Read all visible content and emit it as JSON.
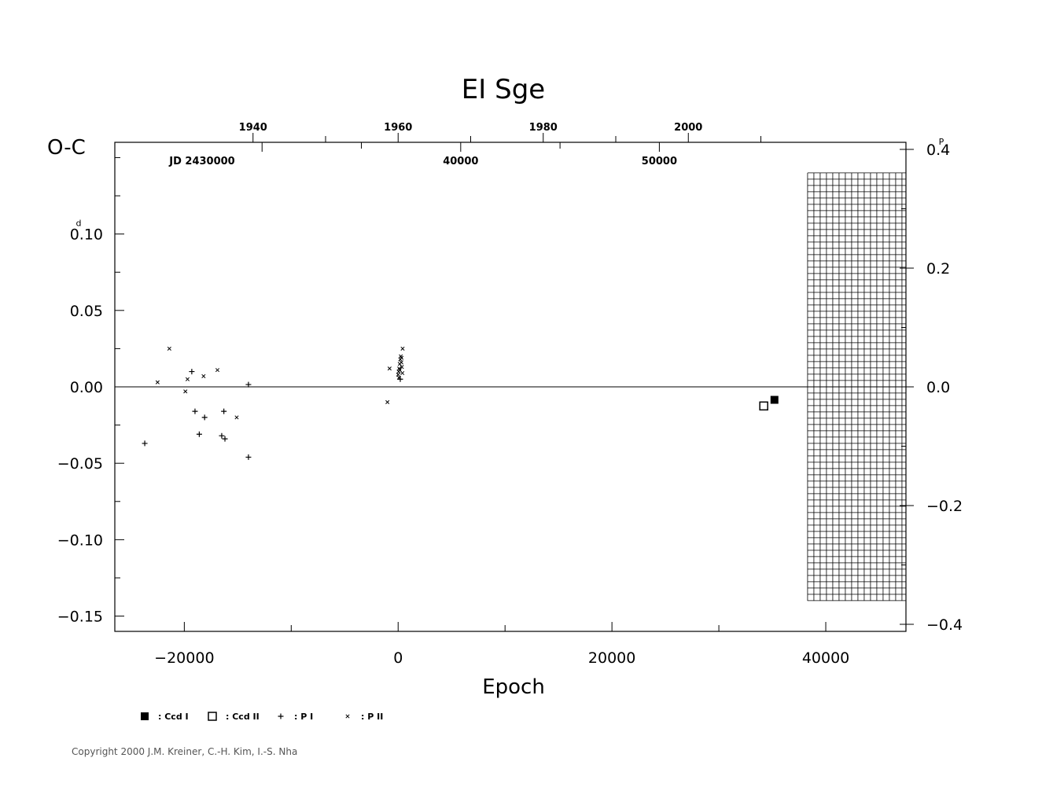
{
  "chart_data": {
    "type": "scatter",
    "title": "EI  Sge",
    "xlabel": "Epoch",
    "ylabel": "O-C",
    "xlim": [
      -26500,
      47500
    ],
    "ylim": [
      -0.16,
      0.16
    ],
    "x_ticks": [
      -20000,
      0,
      20000,
      40000
    ],
    "x_tick_labels": [
      "−20000",
      "0",
      "20000",
      "40000"
    ],
    "x_minor_step": 10000,
    "y_ticks": [
      0.1,
      0.05,
      0.0,
      -0.05,
      -0.1,
      -0.15
    ],
    "y_tick_labels": [
      "0.10",
      "0.05",
      "0.00",
      "−0.05",
      "−0.10",
      "−0.15"
    ],
    "y_tick_unit_superscript": "d",
    "y_minor_step": 0.025,
    "right_axis": {
      "unit_superscript": "P",
      "ticks": [
        0.4,
        0.2,
        0.0,
        -0.2,
        -0.4
      ],
      "tick_labels": [
        "0.4",
        "0.2",
        "0.0",
        "−0.2",
        "−0.4"
      ],
      "minor_step": 0.1,
      "range": [
        -0.4,
        0.4
      ]
    },
    "top_year_axis": {
      "labels": [
        "1940",
        "1960",
        "1980",
        "2000"
      ],
      "years": [
        1940,
        1960,
        1980,
        2000
      ],
      "minor_step_years": 10,
      "epoch_at_1960": 0,
      "epochs_per_year": 678.6
    },
    "jd_axis": {
      "labels": [
        "JD  2430000",
        "40000",
        "50000"
      ],
      "jd": [
        30000,
        40000,
        50000
      ],
      "epoch_zero_jd": 36850,
      "epochs_per_jd": 1.858
    },
    "grid_region": {
      "x_from": 38300,
      "x_to": 47500,
      "y_from": -0.14,
      "y_to": 0.14
    },
    "series": [
      {
        "name": "Ccd I",
        "marker": "filled-square",
        "points": [
          [
            35200,
            -0.0085
          ]
        ]
      },
      {
        "name": "Ccd II",
        "marker": "open-square",
        "points": [
          [
            34200,
            -0.0125
          ]
        ]
      },
      {
        "name": "P I",
        "marker": "plus",
        "points": [
          [
            -23700,
            -0.037
          ],
          [
            -19300,
            0.01
          ],
          [
            -19000,
            -0.016
          ],
          [
            -18600,
            -0.031
          ],
          [
            -18100,
            -0.02
          ],
          [
            -16500,
            -0.032
          ],
          [
            -16300,
            -0.016
          ],
          [
            -16200,
            -0.034
          ],
          [
            -14000,
            0.0015
          ],
          [
            -14000,
            -0.046
          ],
          [
            200,
            0.005
          ]
        ]
      },
      {
        "name": "P II",
        "marker": "x",
        "points": [
          [
            -21400,
            0.025
          ],
          [
            -22500,
            0.003
          ],
          [
            -19900,
            -0.003
          ],
          [
            -19700,
            0.005
          ],
          [
            -18200,
            0.007
          ],
          [
            -16900,
            0.011
          ],
          [
            -15100,
            -0.02
          ],
          [
            -800,
            0.012
          ],
          [
            -1000,
            -0.01
          ],
          [
            0,
            0.008
          ],
          [
            50,
            0.01
          ],
          [
            100,
            0.012
          ],
          [
            150,
            0.015
          ],
          [
            200,
            0.018
          ],
          [
            250,
            0.02
          ],
          [
            300,
            0.016
          ],
          [
            350,
            0.013
          ],
          [
            400,
            0.009
          ],
          [
            420,
            0.025
          ],
          [
            80,
            0.006
          ],
          [
            160,
            0.011
          ],
          [
            320,
            0.019
          ]
        ]
      }
    ],
    "legend": [
      {
        "marker": "filled-square",
        "label": ": Ccd  I"
      },
      {
        "marker": "open-square",
        "label": ": Ccd  II"
      },
      {
        "marker": "plus",
        "label": ": P  I"
      },
      {
        "marker": "x",
        "label": ": P  II"
      }
    ],
    "legend_position": "bottom-left",
    "grid": false
  },
  "copyright": "Copyright 2000 J.M. Kreiner, C.-H. Kim, I.-S. Nha"
}
